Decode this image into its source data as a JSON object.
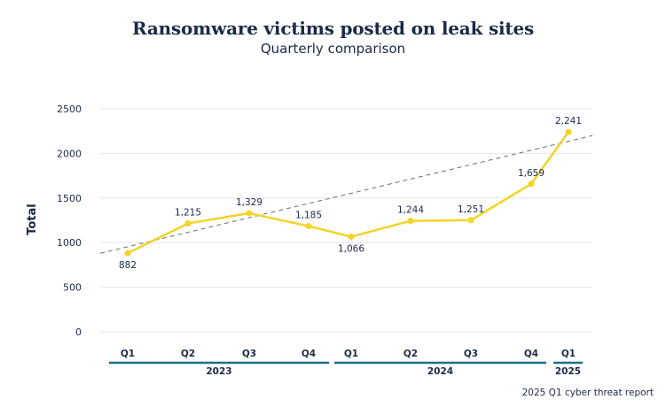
{
  "chart_data": {
    "type": "line",
    "title": "Ransomware victims posted on leak sites",
    "subtitle": "Quarterly comparison",
    "ylabel": "Total",
    "ylim": [
      0,
      2500
    ],
    "yticks": [
      0,
      500,
      1000,
      1500,
      2000,
      2500
    ],
    "grid": true,
    "categories": [
      "Q1",
      "Q2",
      "Q3",
      "Q4",
      "Q1",
      "Q2",
      "Q3",
      "Q4",
      "Q1"
    ],
    "groups": [
      {
        "label": "2023",
        "from": 0,
        "to": 3
      },
      {
        "label": "2024",
        "from": 4,
        "to": 7
      },
      {
        "label": "2025",
        "from": 8,
        "to": 8
      }
    ],
    "series": [
      {
        "values": [
          882,
          1215,
          1329,
          1185,
          1066,
          1244,
          1251,
          1659,
          2241
        ],
        "data_labels": [
          "882",
          "1,215",
          "1,329",
          "1,185",
          "1,066",
          "1,244",
          "1,251",
          "1,659",
          "2,241"
        ],
        "color": "#f5d327"
      }
    ],
    "trendline": {
      "style": "dashed",
      "color": "#6e6e6e",
      "start": 880,
      "end": 2200
    }
  },
  "source_note": "2025 Q1 cyber threat report",
  "colors": {
    "text": "#1b2a48",
    "grid": "#e6e6e6",
    "group_bar": "#1e6e8c",
    "line": "#f5d327"
  }
}
